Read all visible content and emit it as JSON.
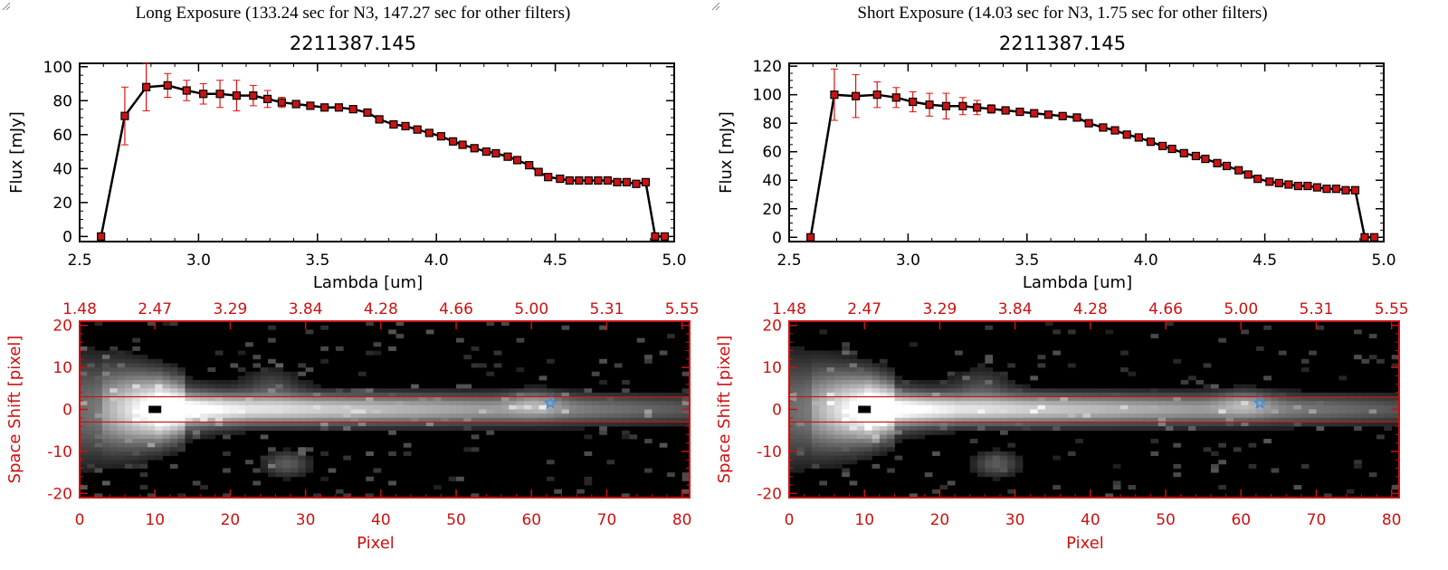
{
  "panels": [
    {
      "header": "Long Exposure (133.24 sec for N3, 147.27 sec for other filters)",
      "chart_data": {
        "type": "line",
        "title": "2211387.145",
        "xlabel": "Lambda [um]",
        "ylabel": "Flux [mJy]",
        "xlim": [
          2.5,
          5.0
        ],
        "ylim": [
          -3,
          102
        ],
        "xticks": [
          "2.5",
          "3.0",
          "3.5",
          "4.0",
          "4.5",
          "5.0"
        ],
        "yticks": [
          "0",
          "20",
          "40",
          "60",
          "80",
          "100"
        ],
        "series": [
          {
            "x": [
              2.59,
              2.69,
              2.78,
              2.87,
              2.95,
              3.02,
              3.09,
              3.16,
              3.23,
              3.29,
              3.35,
              3.41,
              3.47,
              3.53,
              3.59,
              3.65,
              3.71,
              3.76,
              3.82,
              3.87,
              3.92,
              3.97,
              4.02,
              4.07,
              4.11,
              4.16,
              4.21,
              4.25,
              4.3,
              4.34,
              4.39,
              4.43,
              4.47,
              4.52,
              4.56,
              4.6,
              4.64,
              4.68,
              4.72,
              4.76,
              4.8,
              4.84,
              4.88,
              4.92,
              4.96
            ],
            "y": [
              0,
              71,
              88,
              89,
              86,
              84,
              84,
              83,
              83,
              81,
              79,
              78,
              77,
              76,
              76,
              75,
              73,
              69,
              66,
              65,
              63,
              61,
              59,
              56,
              54,
              52,
              50,
              49,
              47,
              45,
              42,
              38,
              35,
              34,
              33,
              33,
              33,
              33,
              33,
              32,
              32,
              31,
              32,
              0,
              0
            ],
            "err": [
              0,
              17,
              14,
              7,
              6,
              6,
              8,
              9,
              6,
              5,
              3,
              2,
              2,
              2,
              2,
              2,
              2,
              1,
              1,
              1,
              1,
              1,
              1,
              1,
              1,
              1,
              1,
              1,
              1,
              1,
              1,
              1,
              1,
              1,
              1,
              1,
              1,
              1,
              1,
              1,
              1,
              1,
              1,
              0,
              0
            ]
          }
        ]
      },
      "image_data": {
        "xlabel": "Pixel",
        "ylabel": "Space Shift [pixel]",
        "xlim": [
          0,
          81
        ],
        "ylim": [
          -21,
          21
        ],
        "xticks": [
          "0",
          "10",
          "20",
          "30",
          "40",
          "50",
          "60",
          "70",
          "80"
        ],
        "yticks": [
          "-20",
          "-10",
          "0",
          "10",
          "20"
        ],
        "top_ticks": [
          "1.48",
          "2.47",
          "3.29",
          "3.84",
          "4.28",
          "4.66",
          "5.00",
          "5.31",
          "5.55"
        ],
        "line_y": [
          3,
          -3
        ],
        "marker_x": 10,
        "star_x": 62.5,
        "star_y": 1.5,
        "accent": "#cc1111",
        "star_color": "#3f8fe0"
      }
    },
    {
      "header": "Short Exposure (14.03 sec for N3, 1.75 sec for other filters)",
      "chart_data": {
        "type": "line",
        "title": "2211387.145",
        "xlabel": "Lambda [um]",
        "ylabel": "Flux [mJy]",
        "xlim": [
          2.5,
          5.0
        ],
        "ylim": [
          -3,
          122
        ],
        "xticks": [
          "2.5",
          "3.0",
          "3.5",
          "4.0",
          "4.5",
          "5.0"
        ],
        "yticks": [
          "0",
          "20",
          "40",
          "60",
          "80",
          "100",
          "120"
        ],
        "series": [
          {
            "x": [
              2.59,
              2.69,
              2.78,
              2.87,
              2.95,
              3.02,
              3.09,
              3.16,
              3.23,
              3.29,
              3.35,
              3.41,
              3.47,
              3.53,
              3.59,
              3.65,
              3.71,
              3.76,
              3.82,
              3.87,
              3.92,
              3.97,
              4.02,
              4.07,
              4.11,
              4.16,
              4.21,
              4.25,
              4.3,
              4.34,
              4.39,
              4.43,
              4.47,
              4.52,
              4.56,
              4.6,
              4.64,
              4.68,
              4.72,
              4.76,
              4.8,
              4.84,
              4.88,
              4.92,
              4.96
            ],
            "y": [
              0,
              100,
              99,
              100,
              98,
              95,
              93,
              92,
              92,
              91,
              90,
              89,
              88,
              87,
              86,
              85,
              84,
              80,
              77,
              75,
              72,
              70,
              67,
              64,
              62,
              59,
              57,
              55,
              52,
              50,
              47,
              44,
              41,
              39,
              38,
              37,
              36,
              36,
              35,
              34,
              34,
              33,
              33,
              0,
              0
            ],
            "err": [
              0,
              18,
              15,
              9,
              7,
              7,
              8,
              9,
              6,
              5,
              3,
              2,
              2,
              2,
              2,
              2,
              2,
              1,
              1,
              1,
              1,
              1,
              1,
              1,
              1,
              1,
              1,
              1,
              1,
              1,
              1,
              1,
              1,
              1,
              1,
              1,
              1,
              1,
              1,
              1,
              1,
              1,
              1,
              0,
              0
            ]
          }
        ]
      },
      "image_data": {
        "xlabel": "Pixel",
        "ylabel": "Space Shift [pixel]",
        "xlim": [
          0,
          81
        ],
        "ylim": [
          -21,
          21
        ],
        "xticks": [
          "0",
          "10",
          "20",
          "30",
          "40",
          "50",
          "60",
          "70",
          "80"
        ],
        "yticks": [
          "-20",
          "-10",
          "0",
          "10",
          "20"
        ],
        "top_ticks": [
          "1.48",
          "2.47",
          "3.29",
          "3.84",
          "4.28",
          "4.66",
          "5.00",
          "5.31",
          "5.55"
        ],
        "line_y": [
          3,
          -3
        ],
        "marker_x": 10,
        "star_x": 62.5,
        "star_y": 1.5,
        "accent": "#cc1111",
        "star_color": "#3f8fe0"
      }
    }
  ]
}
